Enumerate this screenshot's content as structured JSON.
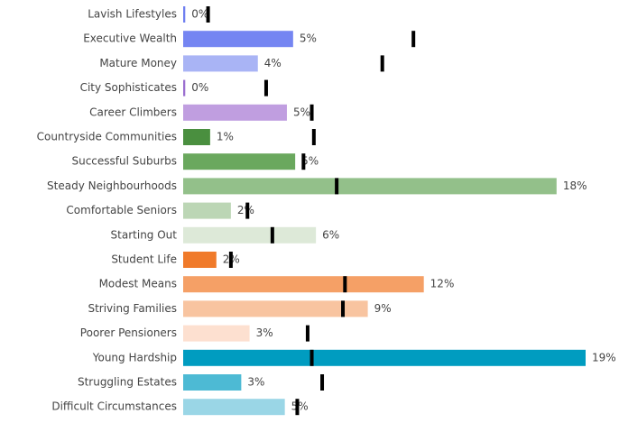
{
  "chart_data": {
    "type": "bar",
    "orientation": "horizontal",
    "categories": [
      "Lavish Lifestyles",
      "Executive Wealth",
      "Mature Money",
      "City Sophisticates",
      "Career Climbers",
      "Countryside Communities",
      "Successful Suburbs",
      "Steady Neighbourhoods",
      "Comfortable Seniors",
      "Starting Out",
      "Student Life",
      "Modest Means",
      "Striving Families",
      "Poorer Pensioners",
      "Young Hardship",
      "Struggling Estates",
      "Difficult Circumstances"
    ],
    "values": [
      0.1,
      5.3,
      3.6,
      0.1,
      5.0,
      1.3,
      5.4,
      18.0,
      2.3,
      6.4,
      1.6,
      11.6,
      8.9,
      3.2,
      19.4,
      2.8,
      4.9
    ],
    "value_labels": [
      "0%",
      "5%",
      "4%",
      "0%",
      "5%",
      "1%",
      "5%",
      "18%",
      "2%",
      "6%",
      "2%",
      "12%",
      "9%",
      "3%",
      "19%",
      "3%",
      "5%"
    ],
    "benchmark": [
      1.2,
      11.1,
      9.6,
      4.0,
      6.2,
      6.3,
      5.8,
      7.4,
      3.1,
      4.3,
      2.3,
      7.8,
      7.7,
      6.0,
      6.2,
      6.7,
      5.5
    ],
    "colors": [
      "#6f7ff0",
      "#7585f2",
      "#a9b4f5",
      "#9b6fd0",
      "#c09ee0",
      "#4a8f3f",
      "#6aa85e",
      "#93c08a",
      "#bcd6b5",
      "#dde9d8",
      "#f07a2a",
      "#f5a066",
      "#f8c4a0",
      "#fde0d0",
      "#009cc0",
      "#4dbad4",
      "#9ad6e6"
    ],
    "benchmark_color": "#000000"
  }
}
